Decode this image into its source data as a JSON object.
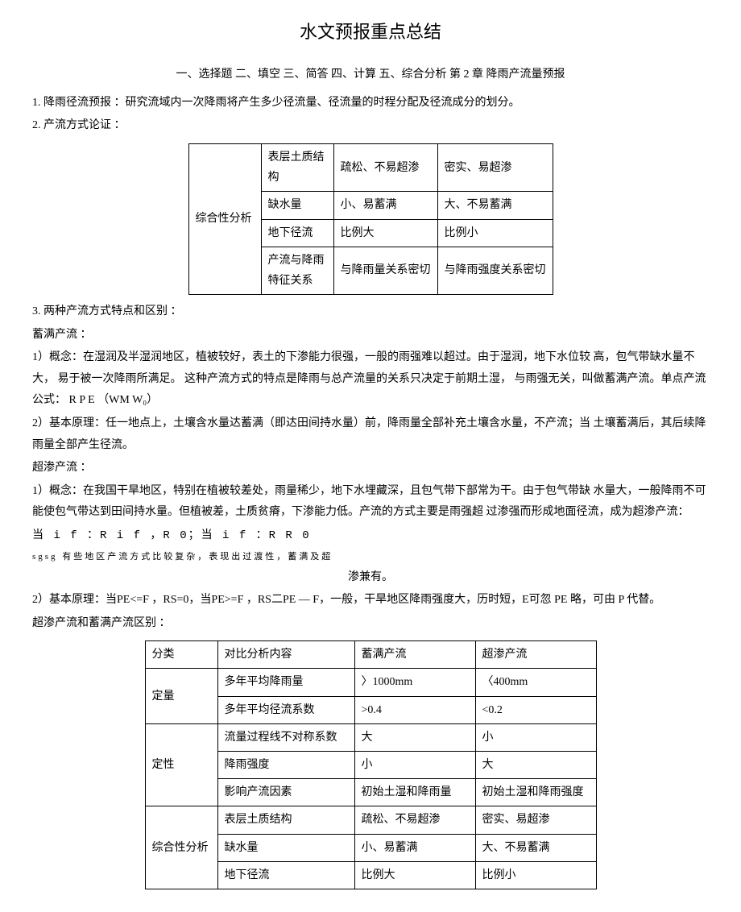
{
  "title": "水文预报重点总结",
  "subtitle": "一、选择题 二、填空 三、简答 四、计算 五、综合分析 第 2 章 降雨产流量预报",
  "p1": "1. 降雨径流预报 ：研究流域内一次降雨将产生多少径流量、径流量的时程分配及径流成分的划分。",
  "p2": "2. 产流方式论证 ：",
  "table1": {
    "rowlabel": "综合性分析",
    "rows": [
      [
        "表层土质结构",
        "疏松、不易超渗",
        "密实、易超渗"
      ],
      [
        "缺水量",
        "小、易蓄满",
        "大、不易蓄满"
      ],
      [
        "地下径流",
        "比例大",
        "比例小"
      ],
      [
        "产流与降雨特征关系",
        "与降雨量关系密切",
        "与降雨强度关系密切"
      ]
    ]
  },
  "p3": "3. 两种产流方式特点和区别 ：",
  "p4": "蓄满产流 ：",
  "p5": "1）概念：在湿润及半湿润地区，植被较好，表土的下渗能力很强，一般的雨强难以超过。由于湿润，地下水位较 高，包气带缺水量不大， 易于被一次降雨所满足。 这种产流方式的特点是降雨与总产流量的关系只决定于前期土湿， 与雨强无关，叫做蓄满产流。单点产流公式： R P E （WM W₀）",
  "p6": "2）基本原理：任一地点上，土壤含水量达蓄满（即达田间持水量）前，降雨量全部补充土壤含水量，不产流；当 土壤蓄满后，其后续降雨量全部产生径流。",
  "p7": "超渗产流 ：",
  "p8": "1）概念：在我国干旱地区，特别在植被较差处，雨量稀少，地下水埋藏深，且包气带下部常为干。由于包气带缺 水量大，一般降雨不可能使包气带达到田间持水量。但植被差，土质贫瘠，下渗能力低。产流的方式主要是雨强超 过渗强而形成地面径流，成为超渗产流：",
  "p9": "当 i f ：R i f ，R 0；当 i f ：R R 0",
  "p9s": "sgsg 有些地区产流方式比较复杂，表现出过渡性，蓄满及超",
  "p9s2": "渗兼有。",
  "p10": "2）基本原理：当PE<=F ，RS=0，当PE>=F ，RS二PE — F，一般，干旱地区降雨强度大，历时短，E可忽 PE 略，可由 P 代替。",
  "p11": "超渗产流和蓄满产流区别 ：",
  "table2": {
    "header": [
      "分类",
      "对比分析内容",
      "蓄满产流",
      "超渗产流"
    ],
    "groups": [
      {
        "label": "定量",
        "rows": [
          [
            "多年平均降雨量",
            "〉1000mm",
            "〈400mm"
          ],
          [
            "多年平均径流系数",
            ">0.4",
            "<0.2"
          ]
        ]
      },
      {
        "label": "定性",
        "rows": [
          [
            "流量过程线不对称系数",
            "大",
            "小"
          ],
          [
            "降雨强度",
            "小",
            "大"
          ],
          [
            "影响产流因素",
            "初始土湿和降雨量",
            "初始土湿和降雨强度"
          ]
        ]
      },
      {
        "label": "综合性分析",
        "rows": [
          [
            "表层土质结构",
            "疏松、不易超渗",
            "密实、易超渗"
          ],
          [
            "缺水量",
            "小、易蓄满",
            "大、不易蓄满"
          ],
          [
            "地下径流",
            "比例大",
            "比例小"
          ]
        ]
      }
    ]
  }
}
